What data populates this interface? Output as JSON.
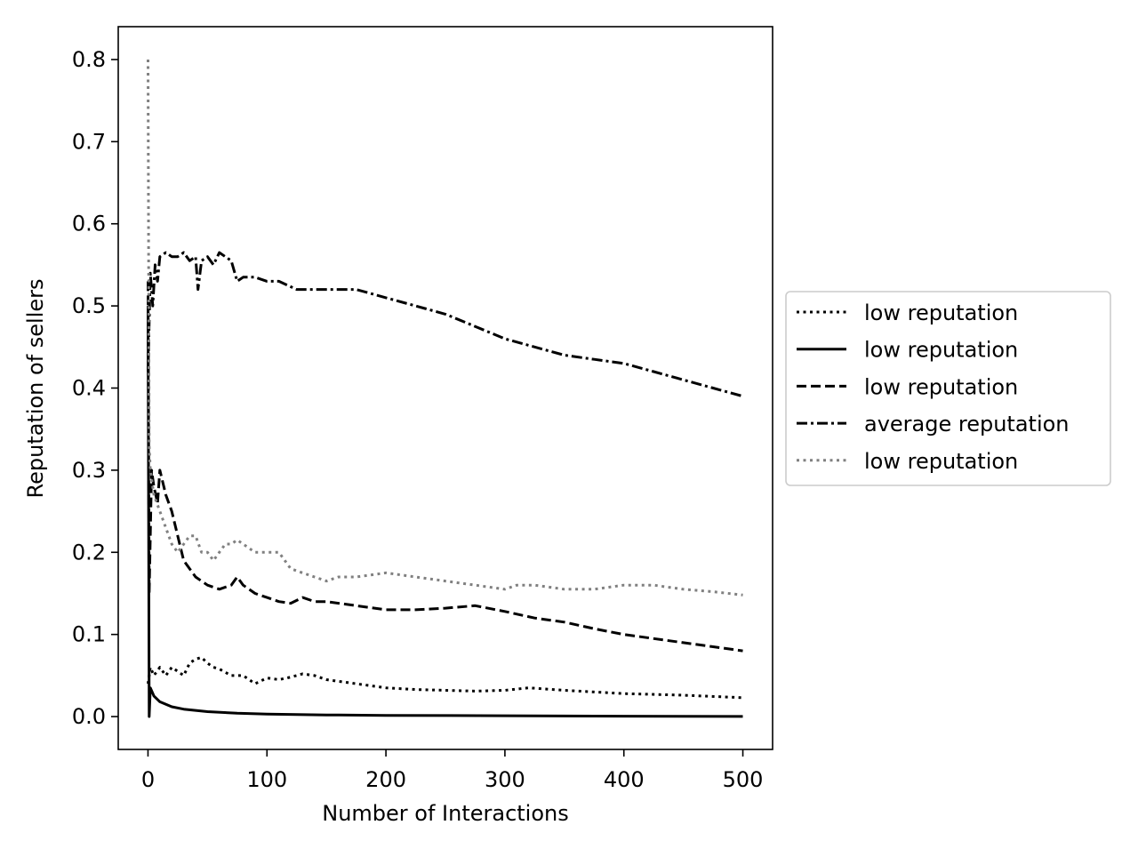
{
  "chart_data": {
    "type": "line",
    "title": "",
    "xlabel": "Number of Interactions",
    "ylabel": "Reputation of sellers",
    "xlim": [
      -25,
      525
    ],
    "ylim": [
      -0.04,
      0.84
    ],
    "x_ticks": [
      0,
      100,
      200,
      300,
      400,
      500
    ],
    "x_tick_labels": [
      "0",
      "100",
      "200",
      "300",
      "400",
      "500"
    ],
    "y_ticks": [
      0.0,
      0.1,
      0.2,
      0.3,
      0.4,
      0.5,
      0.6,
      0.7,
      0.8
    ],
    "y_tick_labels": [
      "0.0",
      "0.1",
      "0.2",
      "0.3",
      "0.4",
      "0.5",
      "0.6",
      "0.7",
      "0.8"
    ],
    "grid": false,
    "legend_position": "right, outside plot",
    "series": [
      {
        "name": "low reputation",
        "color": "#000000",
        "linestyle": "dotted",
        "x": [
          0,
          2,
          5,
          10,
          15,
          20,
          25,
          30,
          35,
          40,
          45,
          50,
          55,
          60,
          70,
          80,
          90,
          100,
          110,
          120,
          130,
          140,
          150,
          175,
          200,
          225,
          250,
          275,
          300,
          320,
          350,
          400,
          450,
          500
        ],
        "y": [
          0.04,
          0.06,
          0.05,
          0.06,
          0.05,
          0.06,
          0.055,
          0.05,
          0.065,
          0.07,
          0.072,
          0.065,
          0.06,
          0.058,
          0.05,
          0.05,
          0.04,
          0.047,
          0.045,
          0.048,
          0.052,
          0.05,
          0.045,
          0.04,
          0.035,
          0.033,
          0.032,
          0.031,
          0.032,
          0.035,
          0.032,
          0.028,
          0.026,
          0.023
        ]
      },
      {
        "name": "low reputation",
        "color": "#000000",
        "linestyle": "solid",
        "x": [
          0,
          1,
          2,
          5,
          10,
          20,
          30,
          50,
          75,
          100,
          150,
          200,
          300,
          400,
          500
        ],
        "y": [
          0.5,
          0.0,
          0.035,
          0.025,
          0.018,
          0.012,
          0.009,
          0.006,
          0.004,
          0.003,
          0.002,
          0.0015,
          0.001,
          0.0005,
          0.0002
        ]
      },
      {
        "name": "low reputation",
        "color": "#000000",
        "linestyle": "dashed",
        "x": [
          0,
          1,
          3,
          5,
          8,
          10,
          15,
          20,
          25,
          30,
          35,
          40,
          50,
          60,
          70,
          75,
          80,
          90,
          100,
          110,
          120,
          130,
          140,
          150,
          175,
          200,
          225,
          250,
          275,
          300,
          325,
          350,
          375,
          400,
          425,
          450,
          475,
          500
        ],
        "y": [
          0.53,
          0.15,
          0.3,
          0.28,
          0.26,
          0.3,
          0.27,
          0.25,
          0.22,
          0.19,
          0.18,
          0.17,
          0.16,
          0.155,
          0.16,
          0.17,
          0.16,
          0.15,
          0.145,
          0.14,
          0.138,
          0.145,
          0.14,
          0.14,
          0.135,
          0.13,
          0.13,
          0.132,
          0.135,
          0.128,
          0.12,
          0.115,
          0.107,
          0.1,
          0.095,
          0.09,
          0.085,
          0.08
        ]
      },
      {
        "name": "average reputation",
        "color": "#000000",
        "linestyle": "dashdot",
        "x": [
          0,
          2,
          4,
          6,
          8,
          10,
          15,
          20,
          25,
          30,
          35,
          40,
          42,
          45,
          50,
          55,
          60,
          65,
          70,
          75,
          80,
          90,
          100,
          110,
          125,
          150,
          175,
          200,
          225,
          250,
          275,
          300,
          325,
          350,
          375,
          400,
          425,
          450,
          475,
          500
        ],
        "y": [
          0.42,
          0.54,
          0.5,
          0.55,
          0.53,
          0.56,
          0.565,
          0.56,
          0.56,
          0.565,
          0.555,
          0.56,
          0.52,
          0.555,
          0.56,
          0.55,
          0.565,
          0.56,
          0.555,
          0.53,
          0.535,
          0.535,
          0.53,
          0.53,
          0.52,
          0.52,
          0.52,
          0.51,
          0.5,
          0.49,
          0.475,
          0.46,
          0.45,
          0.44,
          0.435,
          0.43,
          0.42,
          0.41,
          0.4,
          0.39
        ]
      },
      {
        "name": "low reputation",
        "color": "#808080",
        "linestyle": "dotted",
        "x": [
          0,
          1,
          2,
          5,
          10,
          15,
          20,
          25,
          30,
          35,
          40,
          45,
          50,
          55,
          60,
          65,
          70,
          75,
          80,
          90,
          100,
          110,
          120,
          130,
          140,
          150,
          160,
          175,
          200,
          225,
          250,
          275,
          300,
          310,
          325,
          350,
          375,
          400,
          425,
          450,
          475,
          500
        ],
        "y": [
          0.8,
          0.33,
          0.3,
          0.27,
          0.25,
          0.23,
          0.21,
          0.2,
          0.21,
          0.22,
          0.22,
          0.2,
          0.2,
          0.19,
          0.2,
          0.21,
          0.21,
          0.215,
          0.21,
          0.2,
          0.2,
          0.2,
          0.18,
          0.175,
          0.17,
          0.165,
          0.17,
          0.17,
          0.175,
          0.17,
          0.165,
          0.16,
          0.155,
          0.16,
          0.16,
          0.155,
          0.155,
          0.16,
          0.16,
          0.155,
          0.152,
          0.148
        ]
      }
    ]
  }
}
